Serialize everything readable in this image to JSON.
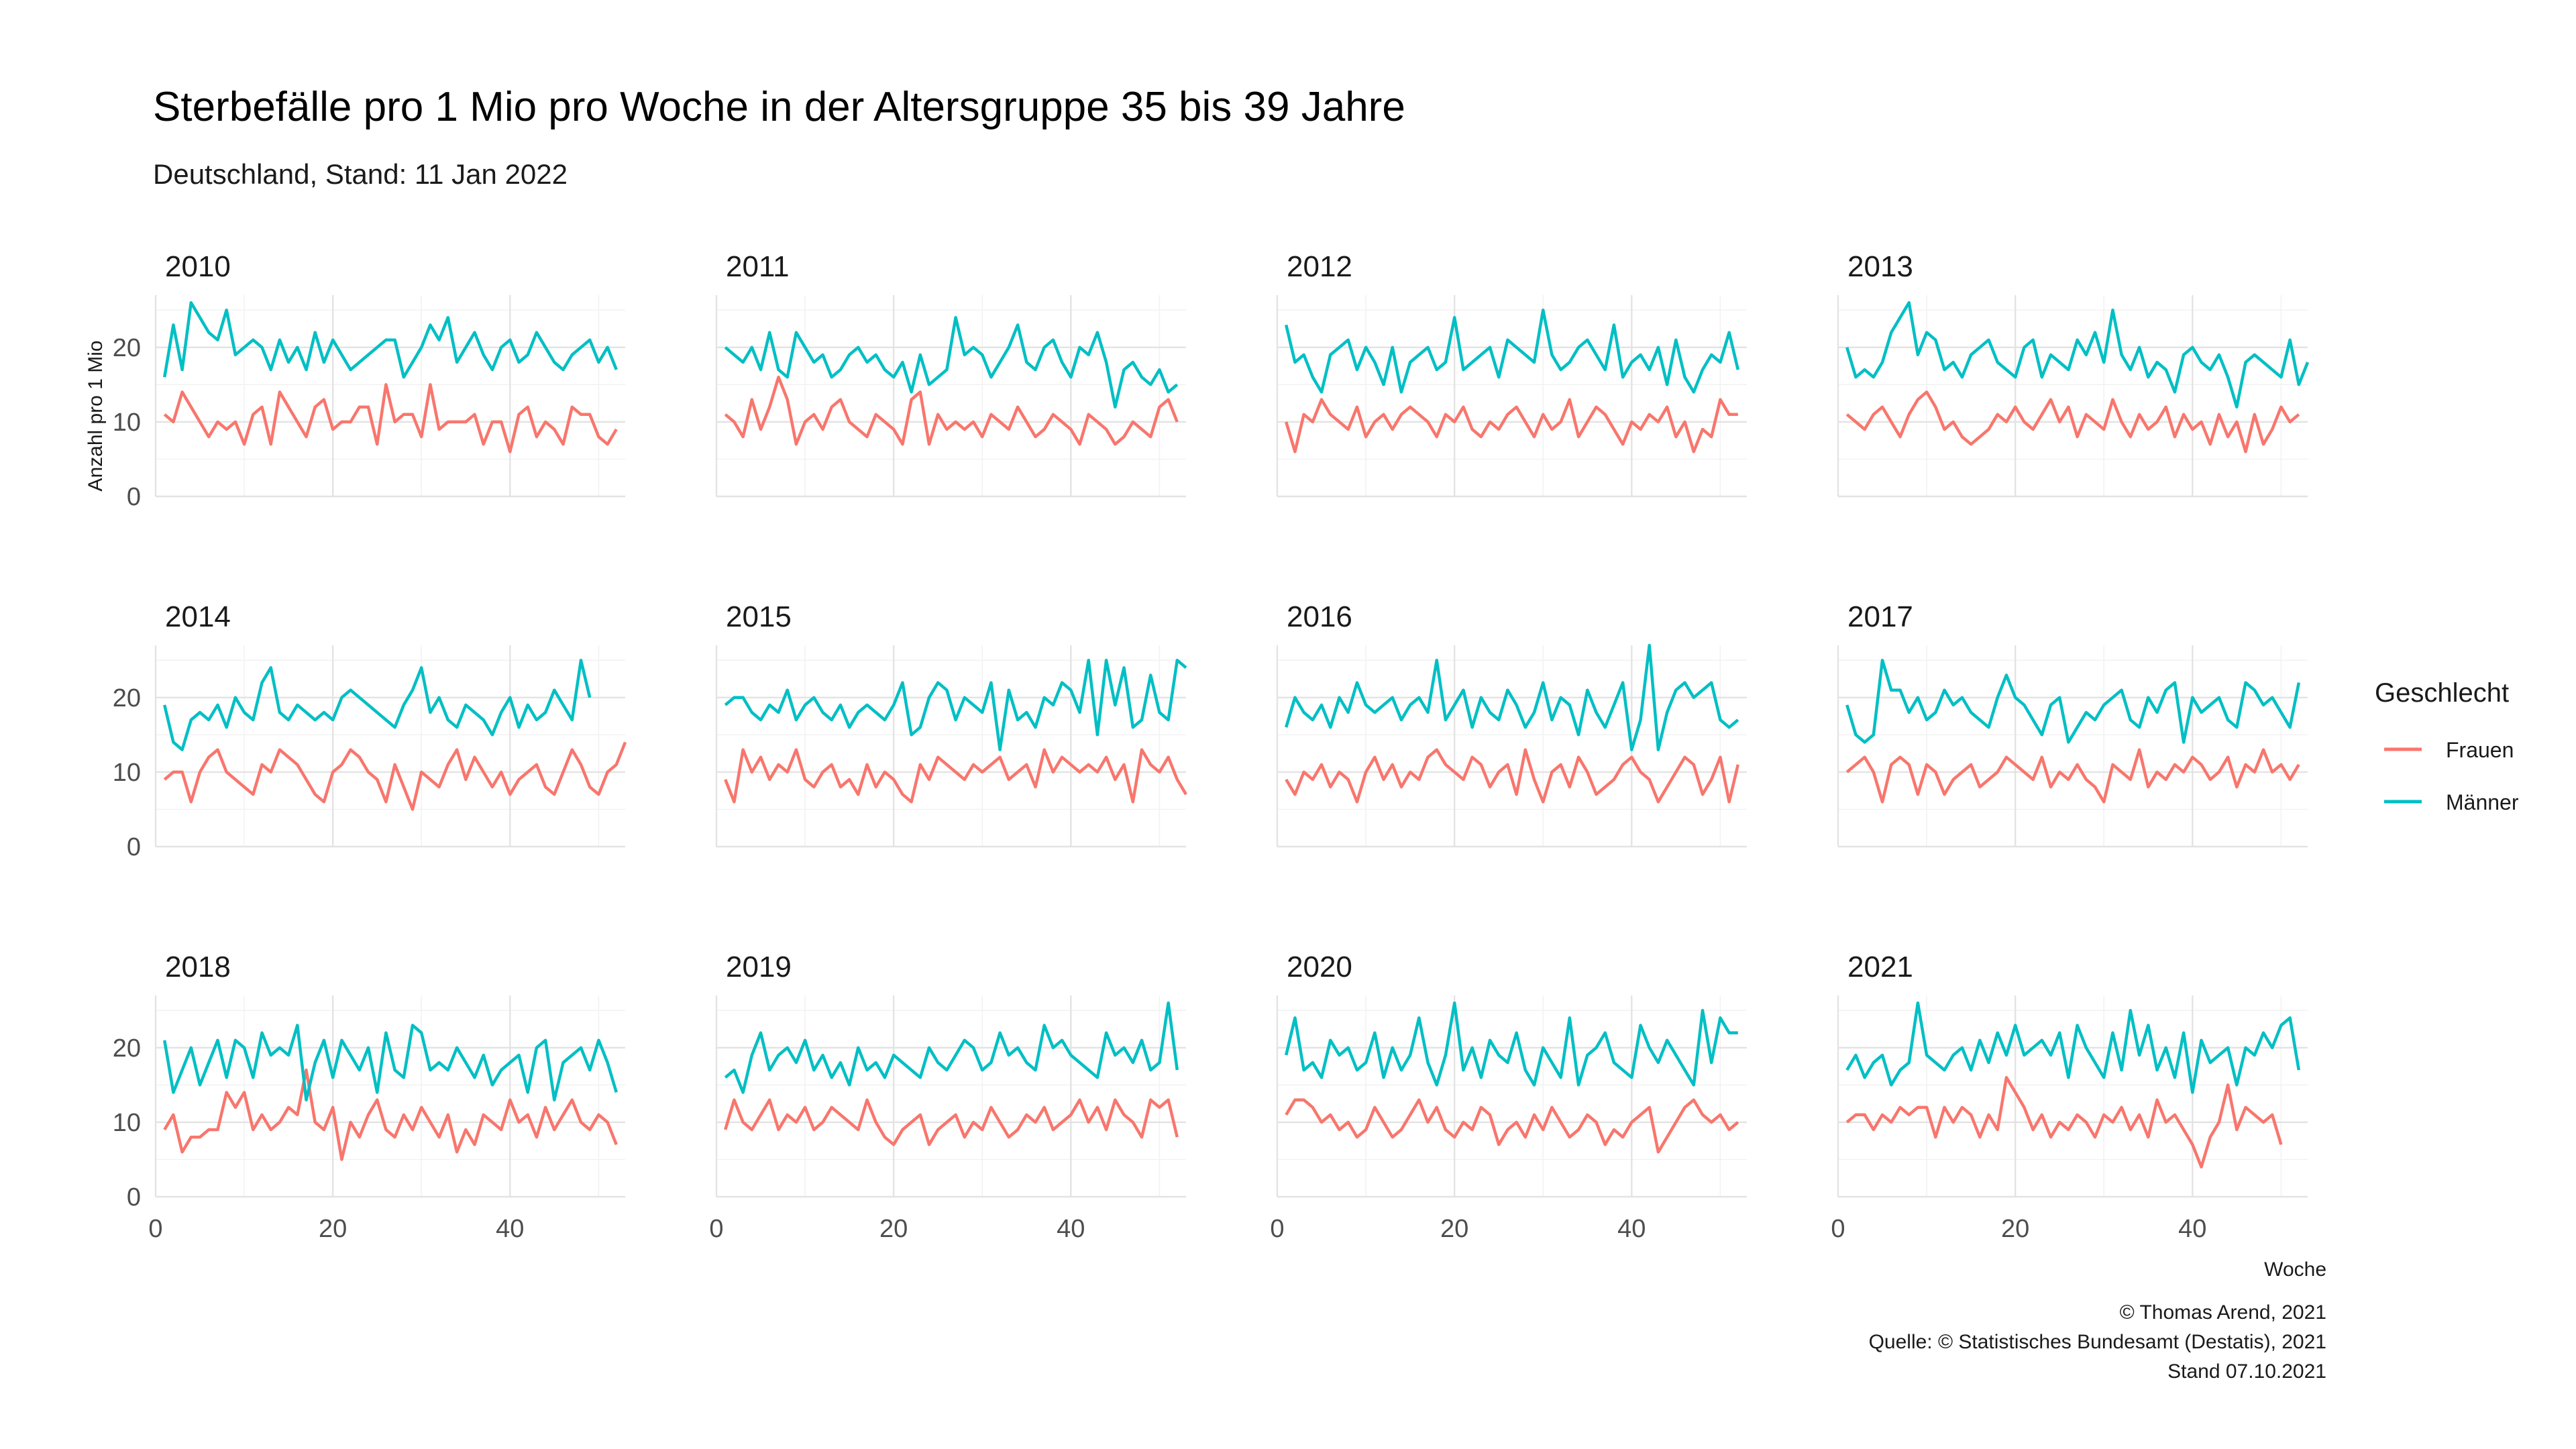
{
  "title": "Sterbefälle pro 1 Mio pro Woche in der Altersgruppe 35 bis 39 Jahre",
  "subtitle": "Deutschland, Stand: 11 Jan 2022",
  "caption": [
    "© Thomas Arend, 2021",
    "Quelle: © Statistisches Bundesamt (Destatis), 2021",
    "Stand 07.10.2021"
  ],
  "chart_data": {
    "type": "line",
    "facet": "year",
    "xlabel": "Woche",
    "ylabel": "Anzahl pro 1 Mio",
    "xlim": [
      0,
      53
    ],
    "ylim": [
      0,
      27
    ],
    "x_ticks": [
      0,
      20,
      40
    ],
    "y_ticks": [
      0,
      10,
      20
    ],
    "grid": true,
    "legend": {
      "title": "Geschlecht",
      "position": "right",
      "entries": [
        {
          "name": "Frauen",
          "color": "#F8766D"
        },
        {
          "name": "Männer",
          "color": "#00BFC4"
        }
      ]
    },
    "panels": [
      {
        "year": "2010",
        "Frauen": [
          11,
          10,
          14,
          12,
          10,
          8,
          10,
          9,
          10,
          7,
          11,
          12,
          7,
          14,
          12,
          10,
          8,
          12,
          13,
          9,
          10,
          10,
          12,
          12,
          7,
          15,
          10,
          11,
          11,
          8,
          15,
          9,
          10,
          10,
          10,
          11,
          7,
          10,
          10,
          6,
          11,
          12,
          8,
          10,
          9,
          7,
          12,
          11,
          11,
          8,
          7,
          9
        ],
        "Männer": [
          16,
          23,
          17,
          26,
          24,
          22,
          21,
          25,
          19,
          20,
          21,
          20,
          17,
          21,
          18,
          20,
          17,
          22,
          18,
          21,
          19,
          17,
          18,
          19,
          20,
          21,
          21,
          16,
          18,
          20,
          23,
          21,
          24,
          18,
          20,
          22,
          19,
          17,
          20,
          21,
          18,
          19,
          22,
          20,
          18,
          17,
          19,
          20,
          21,
          18,
          20,
          17
        ]
      },
      {
        "year": "2011",
        "Frauen": [
          11,
          10,
          8,
          13,
          9,
          12,
          16,
          13,
          7,
          10,
          11,
          9,
          12,
          13,
          10,
          9,
          8,
          11,
          10,
          9,
          7,
          13,
          14,
          7,
          11,
          9,
          10,
          9,
          10,
          8,
          11,
          10,
          9,
          12,
          10,
          8,
          9,
          11,
          10,
          9,
          7,
          11,
          10,
          9,
          7,
          8,
          10,
          9,
          8,
          12,
          13,
          10
        ],
        "Männer": [
          20,
          19,
          18,
          20,
          17,
          22,
          17,
          16,
          22,
          20,
          18,
          19,
          16,
          17,
          19,
          20,
          18,
          19,
          17,
          16,
          18,
          14,
          19,
          15,
          16,
          17,
          24,
          19,
          20,
          19,
          16,
          18,
          20,
          23,
          18,
          17,
          20,
          21,
          18,
          16,
          20,
          19,
          22,
          18,
          12,
          17,
          18,
          16,
          15,
          17,
          14,
          15
        ]
      },
      {
        "year": "2012",
        "Frauen": [
          10,
          6,
          11,
          10,
          13,
          11,
          10,
          9,
          12,
          8,
          10,
          11,
          9,
          11,
          12,
          11,
          10,
          8,
          11,
          10,
          12,
          9,
          8,
          10,
          9,
          11,
          12,
          10,
          8,
          11,
          9,
          10,
          13,
          8,
          10,
          12,
          11,
          9,
          7,
          10,
          9,
          11,
          10,
          12,
          8,
          10,
          6,
          9,
          8,
          13,
          11,
          11
        ],
        "Männer": [
          23,
          18,
          19,
          16,
          14,
          19,
          20,
          21,
          17,
          20,
          18,
          15,
          20,
          14,
          18,
          19,
          20,
          17,
          18,
          24,
          17,
          18,
          19,
          20,
          16,
          21,
          20,
          19,
          18,
          25,
          19,
          17,
          18,
          20,
          21,
          19,
          17,
          23,
          16,
          18,
          19,
          17,
          20,
          15,
          21,
          16,
          14,
          17,
          19,
          18,
          22,
          17
        ]
      },
      {
        "year": "2013",
        "Frauen": [
          11,
          10,
          9,
          11,
          12,
          10,
          8,
          11,
          13,
          14,
          12,
          9,
          10,
          8,
          7,
          8,
          9,
          11,
          10,
          12,
          10,
          9,
          11,
          13,
          10,
          12,
          8,
          11,
          10,
          9,
          13,
          10,
          8,
          11,
          9,
          10,
          12,
          8,
          11,
          9,
          10,
          7,
          11,
          8,
          10,
          6,
          11,
          7,
          9,
          12,
          10,
          11
        ],
        "Männer": [
          20,
          16,
          17,
          16,
          18,
          22,
          24,
          26,
          19,
          22,
          21,
          17,
          18,
          16,
          19,
          20,
          21,
          18,
          17,
          16,
          20,
          21,
          16,
          19,
          18,
          17,
          21,
          19,
          22,
          18,
          25,
          19,
          17,
          20,
          16,
          18,
          17,
          14,
          19,
          20,
          18,
          17,
          19,
          16,
          12,
          18,
          19,
          18,
          17,
          16,
          21,
          15,
          18
        ]
      },
      {
        "year": "2014",
        "Frauen": [
          9,
          10,
          10,
          6,
          10,
          12,
          13,
          10,
          9,
          8,
          7,
          11,
          10,
          13,
          12,
          11,
          9,
          7,
          6,
          10,
          11,
          13,
          12,
          10,
          9,
          6,
          11,
          8,
          5,
          10,
          9,
          8,
          11,
          13,
          9,
          12,
          10,
          8,
          10,
          7,
          9,
          10,
          11,
          8,
          7,
          10,
          13,
          11,
          8,
          7,
          10,
          11,
          14
        ],
        "Männer": [
          19,
          14,
          13,
          17,
          18,
          17,
          19,
          16,
          20,
          18,
          17,
          22,
          24,
          18,
          17,
          19,
          18,
          17,
          18,
          17,
          20,
          21,
          20,
          19,
          18,
          17,
          16,
          19,
          21,
          24,
          18,
          20,
          17,
          16,
          19,
          18,
          17,
          15,
          18,
          20,
          16,
          19,
          17,
          18,
          21,
          19,
          17,
          25,
          20
        ]
      },
      {
        "year": "2015",
        "Frauen": [
          9,
          6,
          13,
          10,
          12,
          9,
          11,
          10,
          13,
          9,
          8,
          10,
          11,
          8,
          9,
          7,
          11,
          8,
          10,
          9,
          7,
          6,
          11,
          9,
          12,
          11,
          10,
          9,
          11,
          10,
          11,
          12,
          9,
          10,
          11,
          8,
          13,
          10,
          12,
          11,
          10,
          11,
          10,
          12,
          9,
          11,
          6,
          13,
          11,
          10,
          12,
          9,
          7
        ],
        "Männer": [
          19,
          20,
          20,
          18,
          17,
          19,
          18,
          21,
          17,
          19,
          20,
          18,
          17,
          19,
          16,
          18,
          19,
          18,
          17,
          19,
          22,
          15,
          16,
          20,
          22,
          21,
          17,
          20,
          19,
          18,
          22,
          13,
          21,
          17,
          18,
          16,
          20,
          19,
          22,
          21,
          18,
          25,
          15,
          25,
          19,
          24,
          16,
          17,
          23,
          18,
          17,
          25,
          24
        ]
      },
      {
        "year": "2016",
        "Frauen": [
          9,
          7,
          10,
          9,
          11,
          8,
          10,
          9,
          6,
          10,
          12,
          9,
          11,
          8,
          10,
          9,
          12,
          13,
          11,
          10,
          9,
          12,
          11,
          8,
          10,
          11,
          7,
          13,
          9,
          6,
          10,
          11,
          8,
          12,
          10,
          7,
          8,
          9,
          11,
          12,
          10,
          9,
          6,
          8,
          10,
          12,
          11,
          7,
          9,
          12,
          6,
          11
        ],
        "Männer": [
          16,
          20,
          18,
          17,
          19,
          16,
          20,
          18,
          22,
          19,
          18,
          19,
          20,
          17,
          19,
          20,
          18,
          25,
          17,
          19,
          21,
          16,
          20,
          18,
          17,
          21,
          19,
          16,
          18,
          22,
          17,
          20,
          19,
          15,
          21,
          18,
          16,
          19,
          22,
          13,
          17,
          27,
          13,
          18,
          21,
          22,
          20,
          21,
          22,
          17,
          16,
          17
        ]
      },
      {
        "year": "2017",
        "Frauen": [
          10,
          11,
          12,
          10,
          6,
          11,
          12,
          11,
          7,
          11,
          10,
          7,
          9,
          10,
          11,
          8,
          9,
          10,
          12,
          11,
          10,
          9,
          12,
          8,
          10,
          9,
          11,
          9,
          8,
          6,
          11,
          10,
          9,
          13,
          8,
          10,
          9,
          11,
          10,
          12,
          11,
          9,
          10,
          12,
          8,
          11,
          10,
          13,
          10,
          11,
          9,
          11
        ],
        "Männer": [
          19,
          15,
          14,
          15,
          25,
          21,
          21,
          18,
          20,
          17,
          18,
          21,
          19,
          20,
          18,
          17,
          16,
          20,
          23,
          20,
          19,
          17,
          15,
          19,
          20,
          14,
          16,
          18,
          17,
          19,
          20,
          21,
          17,
          16,
          20,
          18,
          21,
          22,
          14,
          20,
          18,
          19,
          20,
          17,
          16,
          22,
          21,
          19,
          20,
          18,
          16,
          22
        ]
      },
      {
        "year": "2018",
        "Frauen": [
          9,
          11,
          6,
          8,
          8,
          9,
          9,
          14,
          12,
          14,
          9,
          11,
          9,
          10,
          12,
          11,
          17,
          10,
          9,
          12,
          5,
          10,
          8,
          11,
          13,
          9,
          8,
          11,
          9,
          12,
          10,
          8,
          11,
          6,
          9,
          7,
          11,
          10,
          9,
          13,
          10,
          11,
          8,
          12,
          9,
          11,
          13,
          10,
          9,
          11,
          10,
          7
        ],
        "Männer": [
          21,
          14,
          17,
          20,
          15,
          18,
          21,
          16,
          21,
          20,
          16,
          22,
          19,
          20,
          19,
          23,
          13,
          18,
          21,
          16,
          21,
          19,
          17,
          20,
          14,
          22,
          17,
          16,
          23,
          22,
          17,
          18,
          17,
          20,
          18,
          16,
          19,
          15,
          17,
          18,
          19,
          14,
          20,
          21,
          13,
          18,
          19,
          20,
          17,
          21,
          18,
          14
        ]
      },
      {
        "year": "2019",
        "Frauen": [
          9,
          13,
          10,
          9,
          11,
          13,
          9,
          11,
          10,
          12,
          9,
          10,
          12,
          11,
          10,
          9,
          13,
          10,
          8,
          7,
          9,
          10,
          11,
          7,
          9,
          10,
          11,
          8,
          10,
          9,
          12,
          10,
          8,
          9,
          11,
          10,
          12,
          9,
          10,
          11,
          13,
          10,
          12,
          9,
          13,
          11,
          10,
          8,
          13,
          12,
          13,
          8
        ],
        "Männer": [
          16,
          17,
          14,
          19,
          22,
          17,
          19,
          20,
          18,
          21,
          17,
          19,
          16,
          18,
          15,
          20,
          17,
          18,
          16,
          19,
          18,
          17,
          16,
          20,
          18,
          17,
          19,
          21,
          20,
          17,
          18,
          22,
          19,
          20,
          18,
          17,
          23,
          20,
          21,
          19,
          18,
          17,
          16,
          22,
          19,
          20,
          18,
          21,
          17,
          18,
          26,
          17
        ]
      },
      {
        "year": "2020",
        "Frauen": [
          11,
          13,
          13,
          12,
          10,
          11,
          9,
          10,
          8,
          9,
          12,
          10,
          8,
          9,
          11,
          13,
          10,
          12,
          9,
          8,
          10,
          9,
          12,
          11,
          7,
          9,
          10,
          8,
          11,
          9,
          12,
          10,
          8,
          9,
          11,
          10,
          7,
          9,
          8,
          10,
          11,
          12,
          6,
          8,
          10,
          12,
          13,
          11,
          10,
          11,
          9,
          10
        ],
        "Männer": [
          19,
          24,
          17,
          18,
          16,
          21,
          19,
          20,
          17,
          18,
          22,
          16,
          20,
          17,
          19,
          24,
          18,
          15,
          19,
          26,
          17,
          20,
          16,
          21,
          19,
          18,
          22,
          17,
          15,
          20,
          18,
          16,
          24,
          15,
          19,
          20,
          22,
          18,
          17,
          16,
          23,
          20,
          18,
          21,
          19,
          17,
          15,
          25,
          18,
          24,
          22,
          22
        ]
      },
      {
        "year": "2021",
        "Frauen": [
          10,
          11,
          11,
          9,
          11,
          10,
          12,
          11,
          12,
          12,
          8,
          12,
          10,
          12,
          11,
          8,
          11,
          9,
          16,
          14,
          12,
          9,
          11,
          8,
          10,
          9,
          11,
          10,
          8,
          11,
          10,
          12,
          9,
          11,
          8,
          13,
          10,
          11,
          9,
          7,
          4,
          8,
          10,
          15,
          9,
          12,
          11,
          10,
          11,
          7
        ],
        "Männer": [
          17,
          19,
          16,
          18,
          19,
          15,
          17,
          18,
          26,
          19,
          18,
          17,
          19,
          20,
          17,
          21,
          18,
          22,
          19,
          23,
          19,
          20,
          21,
          19,
          22,
          16,
          23,
          20,
          18,
          16,
          22,
          17,
          25,
          19,
          23,
          17,
          20,
          16,
          22,
          14,
          21,
          18,
          19,
          20,
          15,
          20,
          19,
          22,
          20,
          23,
          24,
          17
        ]
      }
    ]
  }
}
